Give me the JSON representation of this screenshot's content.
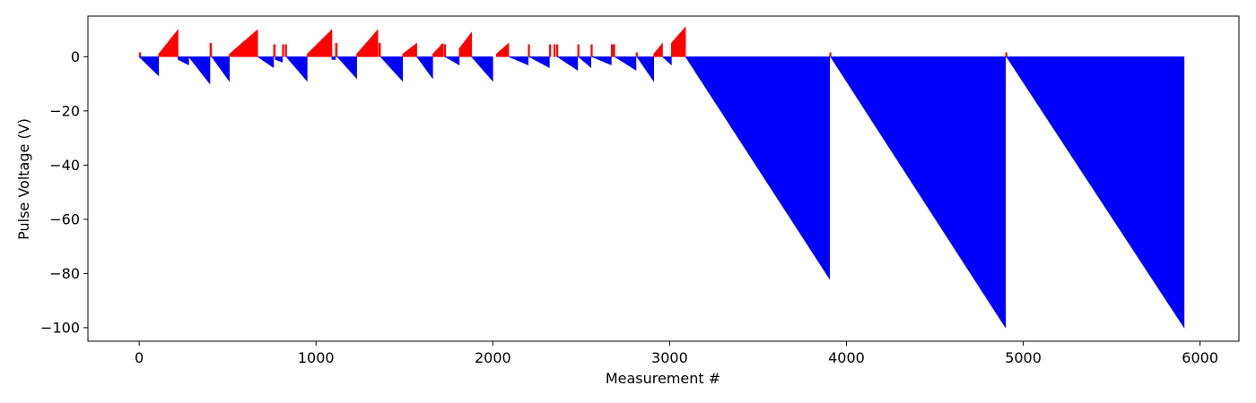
{
  "chart_data": {
    "type": "bar",
    "title": "",
    "xlabel": "Measurement #",
    "ylabel": "Pulse Voltage (V)",
    "xlim": [
      -290,
      6220
    ],
    "ylim": [
      -105,
      15
    ],
    "xticks": [
      0,
      1000,
      2000,
      3000,
      4000,
      5000,
      6000
    ],
    "yticks": [
      0,
      -20,
      -40,
      -60,
      -80,
      -100
    ],
    "grid": false,
    "legend": "none",
    "colors": {
      "positive": "#ff0000",
      "negative": "#0000ff"
    },
    "series": [
      {
        "name": "",
        "color": "#ff0000",
        "segments": [
          {
            "x": [
              0,
              4
            ],
            "y": [
              1.5,
              1.5
            ]
          },
          {
            "x": [
              110,
              220
            ],
            "y": [
              1,
              10
            ]
          },
          {
            "x": [
              400,
              410
            ],
            "y": [
              5,
              5
            ]
          },
          {
            "x": [
              510,
              670
            ],
            "y": [
              1,
              10
            ]
          },
          {
            "x": [
              760,
              770
            ],
            "y": [
              4.5,
              4.5
            ]
          },
          {
            "x": [
              810,
              815
            ],
            "y": [
              4.5,
              4.5
            ]
          },
          {
            "x": [
              826,
              832
            ],
            "y": [
              4.5,
              4.5
            ]
          },
          {
            "x": [
              950,
              1090
            ],
            "y": [
              1,
              10
            ]
          },
          {
            "x": [
              1110,
              1120
            ],
            "y": [
              5,
              5
            ]
          },
          {
            "x": [
              1230,
              1350
            ],
            "y": [
              1,
              10
            ]
          },
          {
            "x": [
              1355,
              1365
            ],
            "y": [
              5,
              5
            ]
          },
          {
            "x": [
              1490,
              1570
            ],
            "y": [
              1,
              5
            ]
          },
          {
            "x": [
              1660,
              1720
            ],
            "y": [
              1,
              5
            ]
          },
          {
            "x": [
              1705,
              1710
            ],
            "y": [
              4.5,
              4.5
            ]
          },
          {
            "x": [
              1725,
              1730
            ],
            "y": [
              4.5,
              4.5
            ]
          },
          {
            "x": [
              1810,
              1880
            ],
            "y": [
              3,
              9
            ]
          },
          {
            "x": [
              2020,
              2090
            ],
            "y": [
              1,
              5
            ]
          },
          {
            "x": [
              2200,
              2205
            ],
            "y": [
              4.5,
              4.5
            ]
          },
          {
            "x": [
              2320,
              2325
            ],
            "y": [
              4.5,
              4.5
            ]
          },
          {
            "x": [
              2345,
              2350
            ],
            "y": [
              4.5,
              4.5
            ]
          },
          {
            "x": [
              2360,
              2365
            ],
            "y": [
              4.5,
              4.5
            ]
          },
          {
            "x": [
              2480,
              2485
            ],
            "y": [
              4.5,
              4.5
            ]
          },
          {
            "x": [
              2555,
              2560
            ],
            "y": [
              4.5,
              4.5
            ]
          },
          {
            "x": [
              2670,
              2690
            ],
            "y": [
              4.5,
              4.5
            ]
          },
          {
            "x": [
              2810,
              2815
            ],
            "y": [
              1.5,
              1.5
            ]
          },
          {
            "x": [
              2910,
              2960
            ],
            "y": [
              1,
              5
            ]
          },
          {
            "x": [
              3010,
              3090
            ],
            "y": [
              5,
              11
            ]
          },
          {
            "x": [
              3905,
              3910
            ],
            "y": [
              1.5,
              1.5
            ]
          },
          {
            "x": [
              4900,
              4905
            ],
            "y": [
              1.5,
              1.5
            ]
          }
        ]
      },
      {
        "name": "",
        "color": "#0000ff",
        "segments": [
          {
            "x": [
              0,
              110
            ],
            "y": [
              0,
              -7
            ]
          },
          {
            "x": [
              220,
              280
            ],
            "y": [
              -1,
              -3
            ]
          },
          {
            "x": [
              280,
              400
            ],
            "y": [
              0,
              -10
            ]
          },
          {
            "x": [
              410,
              510
            ],
            "y": [
              0,
              -9
            ]
          },
          {
            "x": [
              670,
              760
            ],
            "y": [
              0,
              -4
            ]
          },
          {
            "x": [
              770,
              810
            ],
            "y": [
              -1,
              -2
            ]
          },
          {
            "x": [
              832,
              950
            ],
            "y": [
              0,
              -9
            ]
          },
          {
            "x": [
              1090,
              1110
            ],
            "y": [
              -1,
              -1
            ]
          },
          {
            "x": [
              1120,
              1230
            ],
            "y": [
              0,
              -8
            ]
          },
          {
            "x": [
              1365,
              1490
            ],
            "y": [
              0,
              -9
            ]
          },
          {
            "x": [
              1570,
              1660
            ],
            "y": [
              0,
              -8
            ]
          },
          {
            "x": [
              1730,
              1810
            ],
            "y": [
              0,
              -3
            ]
          },
          {
            "x": [
              1880,
              2000
            ],
            "y": [
              0,
              -9
            ]
          },
          {
            "x": [
              2090,
              2200
            ],
            "y": [
              0,
              -3
            ]
          },
          {
            "x": [
              2205,
              2320
            ],
            "y": [
              0,
              -4
            ]
          },
          {
            "x": [
              2365,
              2480
            ],
            "y": [
              0,
              -5
            ]
          },
          {
            "x": [
              2485,
              2555
            ],
            "y": [
              0,
              -4
            ]
          },
          {
            "x": [
              2560,
              2670
            ],
            "y": [
              0,
              -3
            ]
          },
          {
            "x": [
              2690,
              2810
            ],
            "y": [
              0,
              -5
            ]
          },
          {
            "x": [
              2815,
              2910
            ],
            "y": [
              0,
              -9
            ]
          },
          {
            "x": [
              2960,
              3010
            ],
            "y": [
              0,
              -3
            ]
          },
          {
            "x": [
              3090,
              3905
            ],
            "y": [
              0,
              -82
            ]
          },
          {
            "x": [
              3910,
              4900
            ],
            "y": [
              0,
              -100
            ]
          },
          {
            "x": [
              4905,
              5910
            ],
            "y": [
              0,
              -100
            ]
          }
        ]
      }
    ]
  }
}
